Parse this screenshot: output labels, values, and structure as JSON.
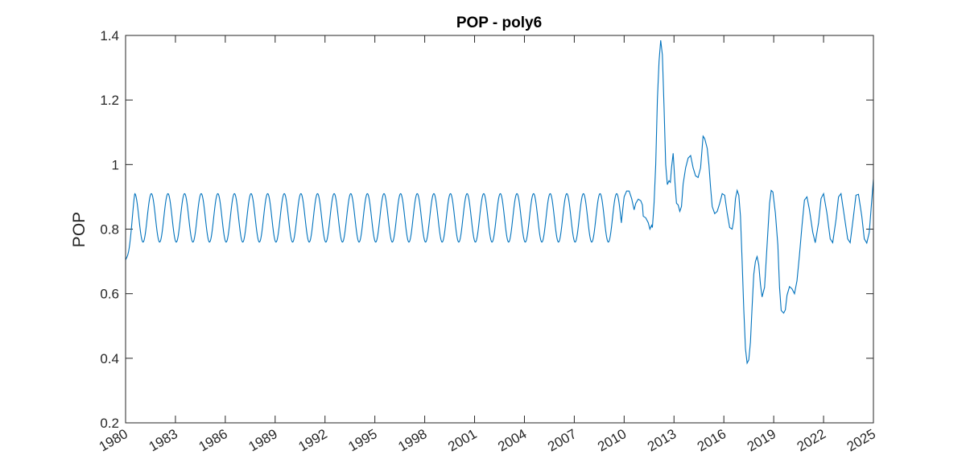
{
  "chart_data": {
    "type": "line",
    "title": "POP - poly6",
    "xlabel": "",
    "ylabel": "POP",
    "xlim": [
      1980,
      2025
    ],
    "ylim": [
      0.2,
      1.4
    ],
    "xticks": [
      1980,
      1983,
      1986,
      1989,
      1992,
      1995,
      1998,
      2001,
      2004,
      2007,
      2010,
      2013,
      2016,
      2019,
      2022,
      2025
    ],
    "yticks": [
      0.2,
      0.4,
      0.6,
      0.8,
      1.0,
      1.2,
      1.4
    ],
    "ytick_labels": [
      "0.2",
      "0.4",
      "0.6",
      "0.8",
      "1",
      "1.2",
      "1.4"
    ],
    "grid": false,
    "line_color": "#0072BD",
    "series": [
      {
        "seasonal_base": {
          "start": 1980.0,
          "end": 2009.85,
          "period": 1.0,
          "mean": 0.835,
          "amplitude": 0.075,
          "peak_phase": 0.55,
          "initial_value": 0.705
        },
        "points": [
          [
            2009.85,
            0.83
          ],
          [
            2010.0,
            0.9
          ],
          [
            2010.15,
            0.918
          ],
          [
            2010.3,
            0.918
          ],
          [
            2010.45,
            0.895
          ],
          [
            2010.6,
            0.86
          ],
          [
            2010.7,
            0.88
          ],
          [
            2010.85,
            0.893
          ],
          [
            2011.0,
            0.888
          ],
          [
            2011.1,
            0.875
          ],
          [
            2011.15,
            0.84
          ],
          [
            2011.3,
            0.835
          ],
          [
            2011.45,
            0.82
          ],
          [
            2011.55,
            0.8
          ],
          [
            2011.65,
            0.812
          ],
          [
            2011.7,
            0.805
          ],
          [
            2011.8,
            0.88
          ],
          [
            2011.9,
            1.0
          ],
          [
            2012.0,
            1.2
          ],
          [
            2012.1,
            1.32
          ],
          [
            2012.2,
            1.385
          ],
          [
            2012.3,
            1.34
          ],
          [
            2012.4,
            1.18
          ],
          [
            2012.5,
            1.0
          ],
          [
            2012.6,
            0.938
          ],
          [
            2012.7,
            0.95
          ],
          [
            2012.78,
            0.945
          ],
          [
            2012.85,
            0.99
          ],
          [
            2012.95,
            1.035
          ],
          [
            2013.05,
            0.95
          ],
          [
            2013.15,
            0.88
          ],
          [
            2013.25,
            0.875
          ],
          [
            2013.35,
            0.855
          ],
          [
            2013.45,
            0.87
          ],
          [
            2013.55,
            0.94
          ],
          [
            2013.7,
            0.99
          ],
          [
            2013.85,
            1.02
          ],
          [
            2014.0,
            1.028
          ],
          [
            2014.15,
            0.99
          ],
          [
            2014.3,
            0.965
          ],
          [
            2014.45,
            0.96
          ],
          [
            2014.6,
            0.99
          ],
          [
            2014.75,
            1.088
          ],
          [
            2014.85,
            1.08
          ],
          [
            2015.0,
            1.05
          ],
          [
            2015.1,
            1.0
          ],
          [
            2015.2,
            0.93
          ],
          [
            2015.3,
            0.87
          ],
          [
            2015.45,
            0.848
          ],
          [
            2015.6,
            0.855
          ],
          [
            2015.75,
            0.88
          ],
          [
            2015.9,
            0.91
          ],
          [
            2016.05,
            0.905
          ],
          [
            2016.2,
            0.85
          ],
          [
            2016.35,
            0.805
          ],
          [
            2016.5,
            0.8
          ],
          [
            2016.6,
            0.83
          ],
          [
            2016.7,
            0.895
          ],
          [
            2016.8,
            0.92
          ],
          [
            2016.9,
            0.905
          ],
          [
            2017.0,
            0.84
          ],
          [
            2017.1,
            0.7
          ],
          [
            2017.2,
            0.55
          ],
          [
            2017.3,
            0.43
          ],
          [
            2017.4,
            0.385
          ],
          [
            2017.5,
            0.395
          ],
          [
            2017.6,
            0.45
          ],
          [
            2017.7,
            0.56
          ],
          [
            2017.8,
            0.66
          ],
          [
            2017.9,
            0.7
          ],
          [
            2018.0,
            0.715
          ],
          [
            2018.1,
            0.69
          ],
          [
            2018.2,
            0.63
          ],
          [
            2018.3,
            0.59
          ],
          [
            2018.45,
            0.62
          ],
          [
            2018.6,
            0.75
          ],
          [
            2018.75,
            0.88
          ],
          [
            2018.85,
            0.92
          ],
          [
            2018.95,
            0.915
          ],
          [
            2019.1,
            0.85
          ],
          [
            2019.25,
            0.75
          ],
          [
            2019.35,
            0.62
          ],
          [
            2019.45,
            0.548
          ],
          [
            2019.6,
            0.54
          ],
          [
            2019.7,
            0.55
          ],
          [
            2019.8,
            0.595
          ],
          [
            2019.95,
            0.622
          ],
          [
            2020.1,
            0.615
          ],
          [
            2020.25,
            0.6
          ],
          [
            2020.4,
            0.64
          ],
          [
            2020.55,
            0.72
          ],
          [
            2020.7,
            0.81
          ],
          [
            2020.85,
            0.89
          ],
          [
            2021.0,
            0.9
          ],
          [
            2021.15,
            0.86
          ],
          [
            2021.35,
            0.79
          ],
          [
            2021.5,
            0.758
          ],
          [
            2021.7,
            0.82
          ],
          [
            2021.85,
            0.895
          ],
          [
            2022.0,
            0.91
          ],
          [
            2022.2,
            0.85
          ],
          [
            2022.4,
            0.77
          ],
          [
            2022.55,
            0.758
          ],
          [
            2022.75,
            0.83
          ],
          [
            2022.9,
            0.9
          ],
          [
            2023.05,
            0.91
          ],
          [
            2023.25,
            0.84
          ],
          [
            2023.45,
            0.77
          ],
          [
            2023.6,
            0.758
          ],
          [
            2023.8,
            0.84
          ],
          [
            2023.95,
            0.905
          ],
          [
            2024.1,
            0.908
          ],
          [
            2024.3,
            0.84
          ],
          [
            2024.45,
            0.77
          ],
          [
            2024.6,
            0.757
          ],
          [
            2024.75,
            0.79
          ],
          [
            2024.9,
            0.89
          ],
          [
            2025.0,
            0.955
          ]
        ]
      }
    ]
  }
}
